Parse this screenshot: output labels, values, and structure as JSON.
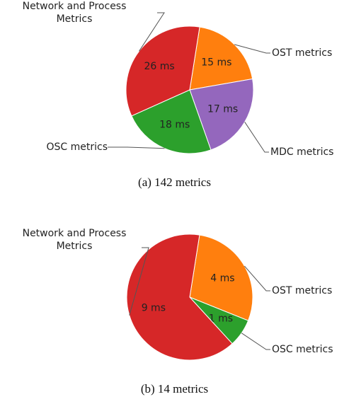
{
  "chart_data": [
    {
      "type": "pie",
      "caption": "(a) 142 metrics",
      "categories": [
        "OST metrics",
        "MDC metrics",
        "OSC metrics",
        "Network and Process Metrics"
      ],
      "values": [
        15,
        17,
        18,
        26
      ],
      "value_labels": [
        "15 ms",
        "17 ms",
        "18 ms",
        "26 ms"
      ],
      "colors": [
        "#ff7f0e",
        "#9467bd",
        "#2ca02c",
        "#d62728"
      ]
    },
    {
      "type": "pie",
      "caption": "(b) 14 metrics",
      "categories": [
        "OST metrics",
        "OSC metrics",
        "Network and Process Metrics"
      ],
      "values": [
        4,
        1,
        9
      ],
      "value_labels": [
        "4 ms",
        "1 ms",
        "9 ms"
      ],
      "colors": [
        "#ff7f0e",
        "#2ca02c",
        "#d62728"
      ]
    }
  ]
}
